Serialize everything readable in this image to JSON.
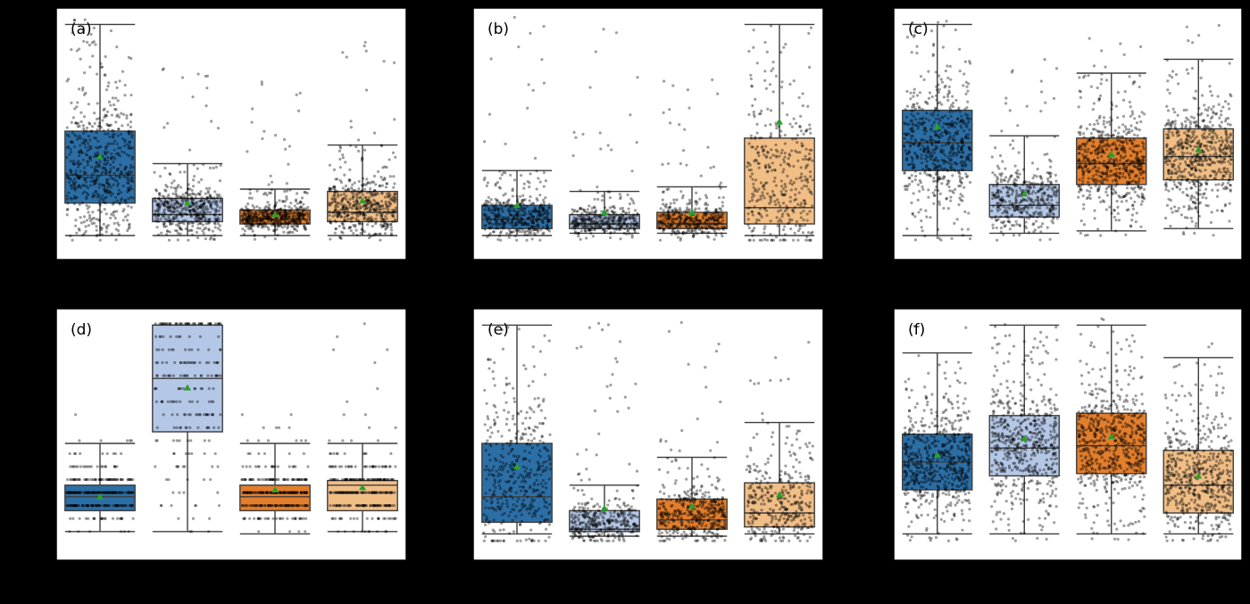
{
  "figure": {
    "background": "#000000",
    "series_colors": [
      "#2c6fa6",
      "#b4c7e6",
      "#e37e2c",
      "#f1be86"
    ],
    "mean_marker_color": "#2ca02c",
    "point_color": "#000000"
  },
  "chart_data": [
    {
      "type": "box",
      "label": "(a)",
      "ylim": [
        0,
        100
      ],
      "xlim": [
        -0.5,
        3.5
      ],
      "yticks": [
        2,
        19,
        36,
        52,
        69,
        85,
        102
      ],
      "boxes": [
        {
          "q1": 19,
          "median": 31,
          "q3": 50,
          "whisker_low": 5,
          "whisker_high": 96,
          "mean": 39
        },
        {
          "q1": 11,
          "median": 14,
          "q3": 21,
          "whisker_low": 5,
          "whisker_high": 36,
          "mean": 19
        },
        {
          "q1": 10,
          "median": 12,
          "q3": 16,
          "whisker_low": 5,
          "whisker_high": 25,
          "mean": 14
        },
        {
          "q1": 11,
          "median": 15,
          "q3": 24,
          "whisker_low": 5,
          "whisker_high": 44,
          "mean": 20
        }
      ],
      "jitter": [
        {
          "count": 600,
          "low": 3,
          "high": 100,
          "peak": 25
        },
        {
          "count": 480,
          "low": 3,
          "high": 83,
          "peak": 12
        },
        {
          "count": 480,
          "low": 3,
          "high": 77,
          "peak": 10
        },
        {
          "count": 480,
          "low": 3,
          "high": 92,
          "peak": 13
        }
      ]
    },
    {
      "type": "box",
      "label": "(b)",
      "ylim": [
        0,
        100
      ],
      "xlim": [
        -0.5,
        3.5
      ],
      "yticks": [
        2,
        22,
        42,
        62,
        82,
        102
      ],
      "boxes": [
        {
          "q1": 8,
          "median": 12,
          "q3": 18,
          "whisker_low": 5,
          "whisker_high": 33,
          "mean": 18
        },
        {
          "q1": 8,
          "median": 10,
          "q3": 14,
          "whisker_low": 6,
          "whisker_high": 24,
          "mean": 15
        },
        {
          "q1": 8,
          "median": 10,
          "q3": 15,
          "whisker_low": 6,
          "whisker_high": 26,
          "mean": 15
        },
        {
          "q1": 10,
          "median": 17,
          "q3": 47,
          "whisker_low": 5,
          "whisker_high": 96,
          "mean": 54
        }
      ],
      "jitter": [
        {
          "count": 420,
          "low": 3,
          "high": 100,
          "peak": 9
        },
        {
          "count": 380,
          "low": 3,
          "high": 100,
          "peak": 8
        },
        {
          "count": 380,
          "low": 3,
          "high": 78,
          "peak": 8
        },
        {
          "count": 380,
          "low": 3,
          "high": 96,
          "peak": 15
        }
      ]
    },
    {
      "type": "box",
      "label": "(c)",
      "ylim": [
        0,
        100
      ],
      "xlim": [
        -0.5,
        3.5
      ],
      "yticks": [
        2,
        22,
        42,
        62,
        82,
        102
      ],
      "boxes": [
        {
          "q1": 33,
          "median": 45,
          "q3": 59,
          "whisker_low": 5,
          "whisker_high": 96,
          "mean": 52
        },
        {
          "q1": 13,
          "median": 18,
          "q3": 27,
          "whisker_low": 6,
          "whisker_high": 48,
          "mean": 23
        },
        {
          "q1": 27,
          "median": 36,
          "q3": 47,
          "whisker_low": 7,
          "whisker_high": 75,
          "mean": 40
        },
        {
          "q1": 29,
          "median": 39,
          "q3": 51,
          "whisker_low": 8,
          "whisker_high": 81,
          "mean": 42
        }
      ],
      "jitter": [
        {
          "count": 600,
          "low": 3,
          "high": 100,
          "peak": 44
        },
        {
          "count": 420,
          "low": 3,
          "high": 88,
          "peak": 16
        },
        {
          "count": 600,
          "low": 5,
          "high": 100,
          "peak": 36
        },
        {
          "count": 600,
          "low": 5,
          "high": 96,
          "peak": 40
        }
      ]
    },
    {
      "type": "box",
      "label": "(d)",
      "ylim": [
        0,
        100
      ],
      "xlim": [
        -0.5,
        3.5
      ],
      "yticks": [
        6,
        28,
        50,
        72,
        95
      ],
      "discrete_step": 5.6,
      "boxes": [
        {
          "q1": 16,
          "median": 22,
          "q3": 27,
          "whisker_low": 7,
          "whisker_high": 45,
          "mean": 22
        },
        {
          "q1": 50,
          "median": 73,
          "q3": 96,
          "whisker_low": 7,
          "whisker_high": 96,
          "mean": 69
        },
        {
          "q1": 16,
          "median": 22,
          "q3": 27,
          "whisker_low": 6,
          "whisker_high": 45,
          "mean": 25
        },
        {
          "q1": 16,
          "median": 27,
          "q3": 29,
          "whisker_low": 7,
          "whisker_high": 45,
          "mean": 26
        }
      ],
      "jitter": [
        {
          "count": 300,
          "low": 6,
          "high": 60,
          "peak": 22
        },
        {
          "count": 220,
          "low": 6,
          "high": 96,
          "peak": 70
        },
        {
          "count": 300,
          "low": 6,
          "high": 72,
          "peak": 22
        },
        {
          "count": 300,
          "low": 6,
          "high": 96,
          "peak": 26
        }
      ]
    },
    {
      "type": "box",
      "label": "(e)",
      "ylim": [
        0,
        100
      ],
      "xlim": [
        -0.5,
        3.5
      ],
      "yticks": [
        6,
        28,
        50,
        72,
        95
      ],
      "boxes": [
        {
          "q1": 11,
          "median": 22,
          "q3": 45,
          "whisker_low": 6,
          "whisker_high": 96,
          "mean": 35
        },
        {
          "q1": 7,
          "median": 8,
          "q3": 16,
          "whisker_low": 5,
          "whisker_high": 27,
          "mean": 17
        },
        {
          "q1": 8,
          "median": 12,
          "q3": 21,
          "whisker_low": 5,
          "whisker_high": 39,
          "mean": 18
        },
        {
          "q1": 9,
          "median": 15,
          "q3": 28,
          "whisker_low": 6,
          "whisker_high": 54,
          "mean": 23
        }
      ],
      "jitter": [
        {
          "count": 420,
          "low": 3,
          "high": 100,
          "peak": 10
        },
        {
          "count": 360,
          "low": 3,
          "high": 100,
          "peak": 6
        },
        {
          "count": 420,
          "low": 3,
          "high": 100,
          "peak": 8
        },
        {
          "count": 360,
          "low": 3,
          "high": 90,
          "peak": 9
        }
      ]
    },
    {
      "type": "box",
      "label": "(f)",
      "ylim": [
        0,
        100
      ],
      "xlim": [
        -0.5,
        3.5
      ],
      "yticks": [
        6,
        28,
        50,
        72,
        95
      ],
      "boxes": [
        {
          "q1": 25,
          "median": 37,
          "q3": 49,
          "whisker_low": 6,
          "whisker_high": 84,
          "mean": 40
        },
        {
          "q1": 31,
          "median": 43,
          "q3": 57,
          "whisker_low": 6,
          "whisker_high": 96,
          "mean": 47
        },
        {
          "q1": 32,
          "median": 44,
          "q3": 58,
          "whisker_low": 6,
          "whisker_high": 96,
          "mean": 48
        },
        {
          "q1": 15,
          "median": 27,
          "q3": 42,
          "whisker_low": 6,
          "whisker_high": 82,
          "mean": 31
        }
      ],
      "jitter": [
        {
          "count": 600,
          "low": 3,
          "high": 100,
          "peak": 38
        },
        {
          "count": 600,
          "low": 3,
          "high": 100,
          "peak": 44
        },
        {
          "count": 600,
          "low": 3,
          "high": 100,
          "peak": 46
        },
        {
          "count": 560,
          "low": 3,
          "high": 100,
          "peak": 27
        }
      ]
    }
  ]
}
